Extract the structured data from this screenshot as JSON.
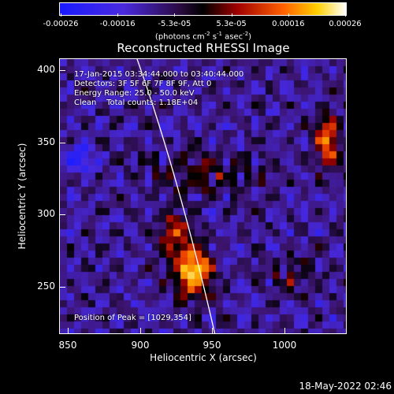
{
  "colorbar": {
    "tick_labels": [
      "-0.00026",
      "-0.00016",
      "-5.3e-05",
      "5.3e-05",
      "0.00016",
      "0.00026"
    ],
    "units_prefix": "(photons cm",
    "units_exp1": "-2",
    "units_mid1": " s",
    "units_exp2": "-1",
    "units_mid2": " asec",
    "units_exp3": "-2",
    "units_suffix": ")",
    "colors": [
      "#2020ff",
      "#6a2fcf",
      "#000000",
      "#b01010",
      "#ff8000",
      "#ffffff"
    ]
  },
  "title": "Reconstructed RHESSI Image",
  "annotations": {
    "time": "17-Jan-2015 03:34:44.000 to 03:40:44.000",
    "detectors": "Detectors: 3F 5F 6F 7F 8F 9F, Att 0",
    "energy": "Energy Range: 25.0 - 50.0 keV",
    "clean": "Clean    Total counts: 1.18E+04",
    "peak": "Position of Peak = [1029,354]"
  },
  "axes": {
    "x_title": "Heliocentric X (arcsec)",
    "y_title": "Heliocentric Y (arcsec)",
    "x_ticks": [
      "850",
      "900",
      "950",
      "1000"
    ],
    "y_ticks": [
      "250",
      "300",
      "350",
      "400"
    ]
  },
  "footer": "18-May-2022 02:46"
}
